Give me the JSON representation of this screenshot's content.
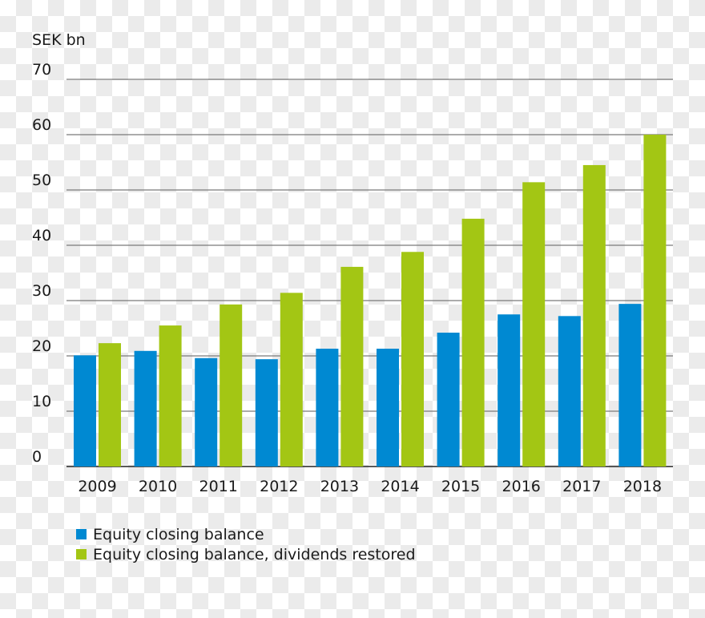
{
  "chart_data": {
    "type": "bar",
    "ylabel": "SEK bn",
    "ylim": [
      0,
      70
    ],
    "yticks": [
      0,
      10,
      20,
      30,
      40,
      50,
      60,
      70
    ],
    "grid": true,
    "legend_placement": "bottom-left",
    "categories": [
      "2009",
      "2010",
      "2011",
      "2012",
      "2013",
      "2014",
      "2015",
      "2016",
      "2017",
      "2018"
    ],
    "series": [
      {
        "name": "Equity closing balance",
        "color": "#0089d2",
        "values": [
          20.1,
          20.9,
          19.6,
          19.4,
          21.3,
          21.3,
          24.2,
          27.5,
          27.2,
          29.4
        ]
      },
      {
        "name": "Equity closing balance, dividends restored",
        "color": "#a3c614",
        "values": [
          22.3,
          25.5,
          29.3,
          31.4,
          36.1,
          38.8,
          44.8,
          51.4,
          54.5,
          60.0
        ]
      }
    ]
  }
}
